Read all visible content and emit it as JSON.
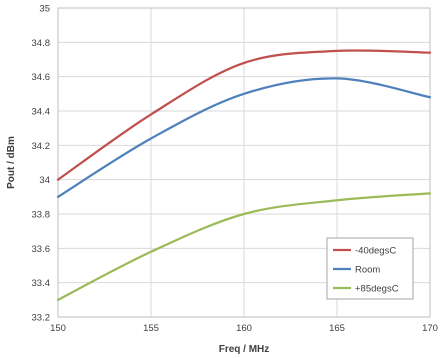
{
  "chart_data": {
    "type": "line",
    "title": "",
    "xlabel": "Freq / MHz",
    "ylabel": "Pout / dBm",
    "xlim": [
      150,
      170
    ],
    "ylim": [
      33.2,
      35
    ],
    "x_ticks": [
      150,
      155,
      160,
      165,
      170
    ],
    "y_ticks": [
      33.2,
      33.4,
      33.6,
      33.8,
      34,
      34.2,
      34.4,
      34.6,
      34.8,
      35
    ],
    "x_tick_labels": [
      "150",
      "155",
      "160",
      "165",
      "170"
    ],
    "y_tick_labels": [
      "33.2",
      "33.4",
      "33.6",
      "33.8",
      "34",
      "34.2",
      "34.4",
      "34.6",
      "34.8",
      "35"
    ],
    "grid": true,
    "legend_position": "bottom-right",
    "x": [
      150,
      155,
      160,
      165,
      170
    ],
    "series": [
      {
        "name": "-40degsC",
        "color": "#c0504d",
        "values": [
          34.0,
          34.38,
          34.68,
          34.75,
          34.74
        ]
      },
      {
        "name": "Room",
        "color": "#4f81bd",
        "values": [
          33.9,
          34.24,
          34.5,
          34.59,
          34.48
        ]
      },
      {
        "name": "+85degsC",
        "color": "#9bbb59",
        "values": [
          33.3,
          33.58,
          33.8,
          33.88,
          33.92
        ]
      }
    ]
  }
}
